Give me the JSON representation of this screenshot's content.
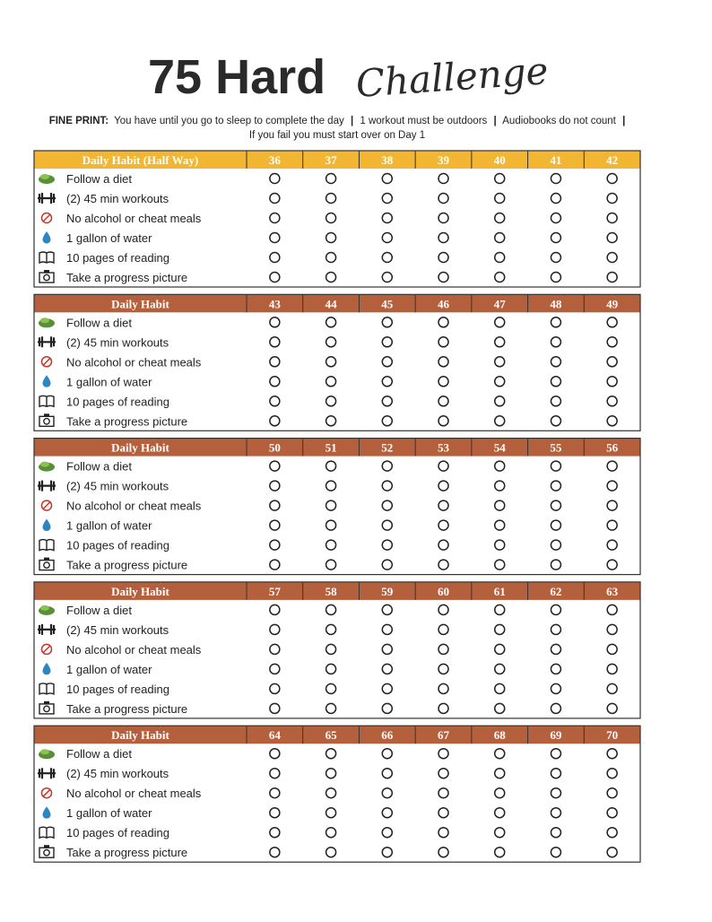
{
  "title": {
    "main": "75 Hard",
    "script": "Challenge"
  },
  "fine_print": {
    "label": "FINE PRINT:",
    "separator": "|",
    "items": [
      "You have until you go to sleep to complete the day",
      "1 workout must be outdoors",
      "Audiobooks do not count"
    ],
    "note": "If you fail you must start over on Day 1"
  },
  "habits": [
    "Follow a diet",
    "(2) 45 min workouts",
    "No alcohol or cheat meals",
    "1 gallon of water",
    "10 pages of reading",
    "Take a progress picture"
  ],
  "blocks": [
    {
      "header": "Daily Habit (Half Way)",
      "color": "#f2b632",
      "days": [
        36,
        37,
        38,
        39,
        40,
        41,
        42
      ]
    },
    {
      "header": "Daily Habit",
      "color": "#b5603d",
      "days": [
        43,
        44,
        45,
        46,
        47,
        48,
        49
      ]
    },
    {
      "header": "Daily Habit",
      "color": "#b5603d",
      "days": [
        50,
        51,
        52,
        53,
        54,
        55,
        56
      ]
    },
    {
      "header": "Daily Habit",
      "color": "#b5603d",
      "days": [
        57,
        58,
        59,
        60,
        61,
        62,
        63
      ]
    },
    {
      "header": "Daily Habit",
      "color": "#b5603d",
      "days": [
        64,
        65,
        66,
        67,
        68,
        69,
        70
      ]
    }
  ]
}
